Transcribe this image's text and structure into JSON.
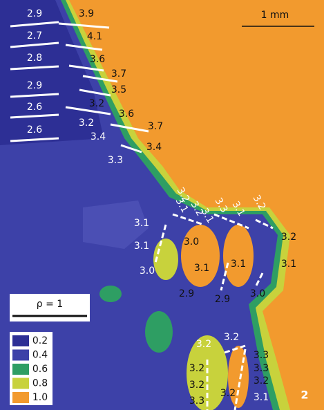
{
  "scale_bar": "1 mm",
  "rho_label": "ρ = 1",
  "panel": "2",
  "legend": [
    "0.2",
    "0.4",
    "0.6",
    "0.8",
    "1.0"
  ],
  "annotations": [
    "2.9",
    "2.7",
    "2.8",
    "2.9",
    "2.6",
    "2.6",
    "3.9",
    "4.1",
    "3.6",
    "3.7",
    "3.5",
    "3.2",
    "3.6",
    "3.7",
    "3.2",
    "3.4",
    "3.4",
    "3.3",
    "3.2",
    "3.1",
    "3.2",
    "3.1",
    "3.3",
    "3.1",
    "3.2",
    "3.1",
    "3.1",
    "3.0",
    "3.0",
    "3.2",
    "3.1",
    "3.1",
    "3.1",
    "2.9",
    "2.9",
    "3.0",
    "3.2",
    "3.2",
    "3.3",
    "3.3",
    "3.2",
    "3.1",
    "3.2",
    "3.2",
    "3.3",
    "3.2"
  ]
}
